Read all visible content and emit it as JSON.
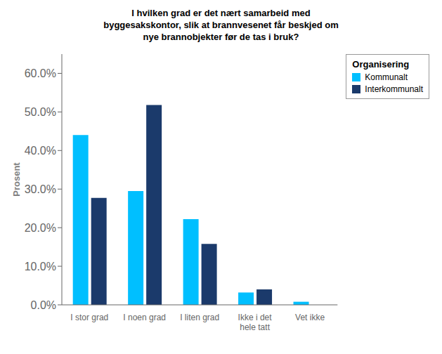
{
  "chart_data": {
    "type": "bar",
    "title": "I hvilken grad er det nært samarbeid med\nbyggesakskontor, slik at brannvesenet får beskjed om\nnye brannobjekter før de tas i bruk?",
    "ylabel": "Prosent",
    "categories": [
      "I stor grad",
      "I noen grad",
      "I liten grad",
      "Ikke i det\nhele tatt",
      "Vet ikke"
    ],
    "series": [
      {
        "name": "Kommunalt",
        "color": "#00BFFF",
        "values": [
          0.44,
          0.295,
          0.222,
          0.032,
          0.008
        ]
      },
      {
        "name": "Interkommunalt",
        "color": "#1B3A6B",
        "values": [
          0.277,
          0.518,
          0.158,
          0.04,
          0.0
        ]
      }
    ],
    "ylim": [
      0,
      0.65
    ],
    "yticks": [
      {
        "value": 0.0,
        "label": "0.0%"
      },
      {
        "value": 0.1,
        "label": "10.0%"
      },
      {
        "value": 0.2,
        "label": "20.0%"
      },
      {
        "value": 0.3,
        "label": "30.0%"
      },
      {
        "value": 0.4,
        "label": "40.0%"
      },
      {
        "value": 0.5,
        "label": "50.0%"
      },
      {
        "value": 0.6,
        "label": "60.0%"
      }
    ],
    "legend_title": "Organisering",
    "legend": "right",
    "grid": false
  }
}
